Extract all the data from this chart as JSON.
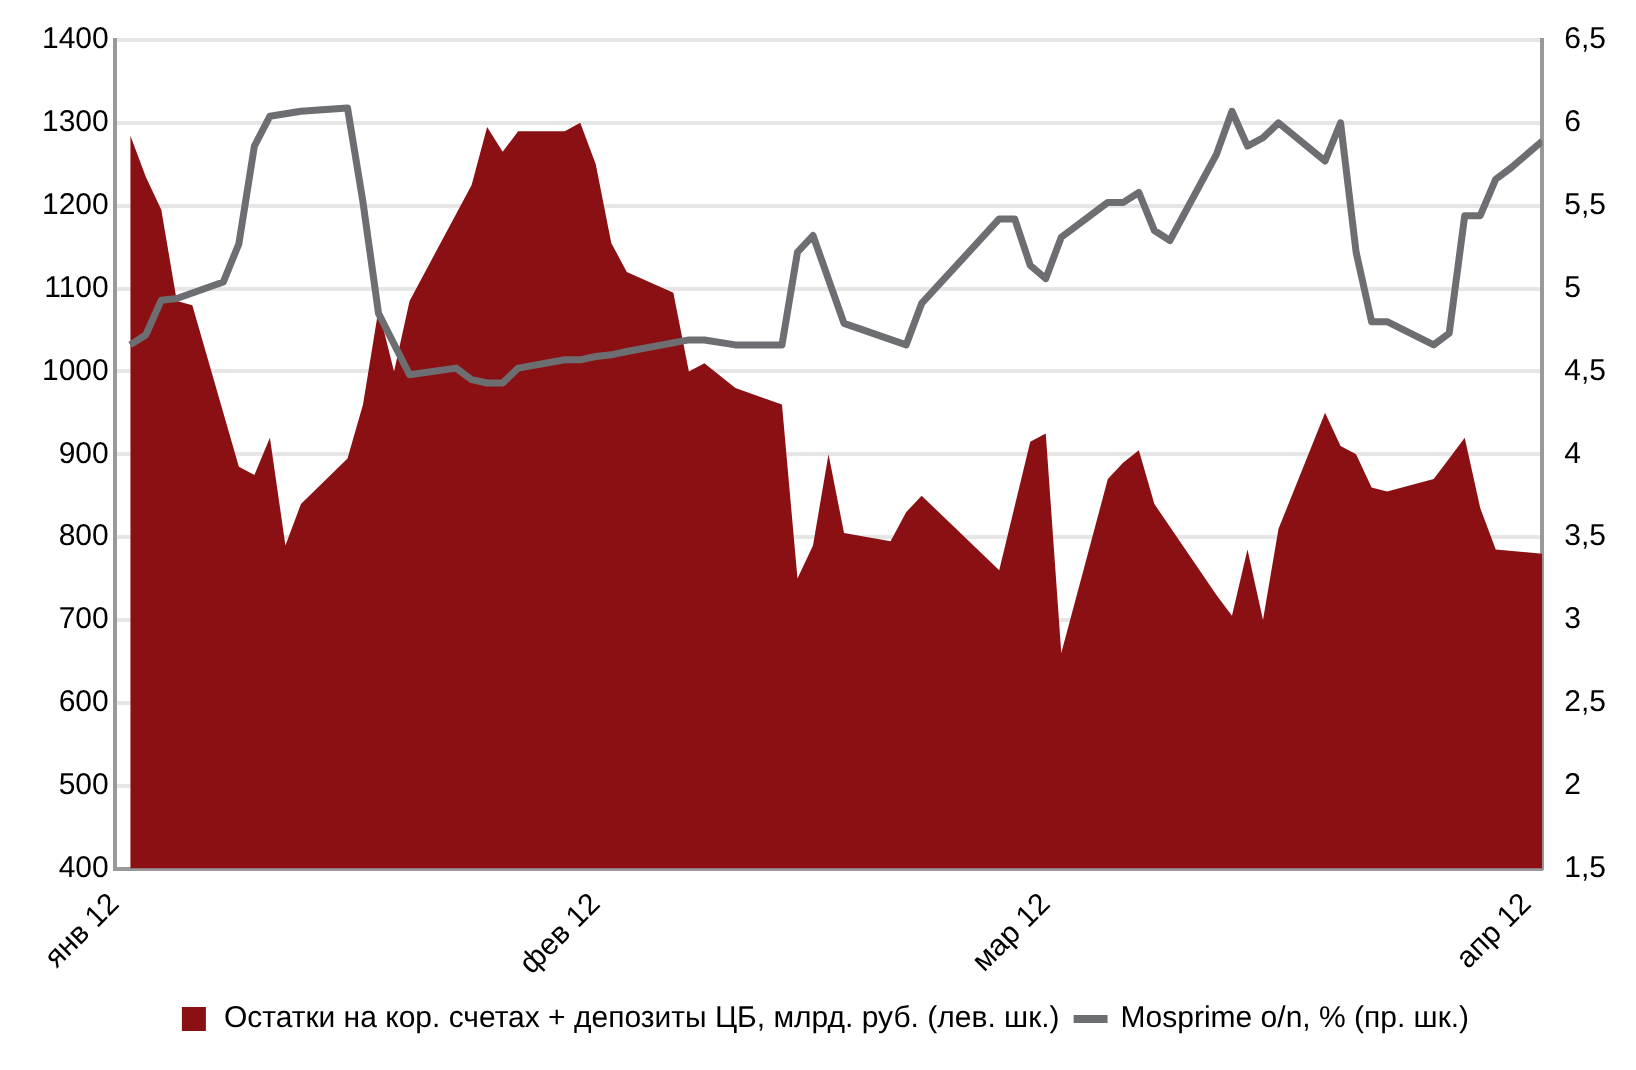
{
  "chart_data": {
    "type": "area",
    "legend": "bottom",
    "grid": "y",
    "marker": "none",
    "line_style": "solid",
    "xlim": [
      "2012-01-01",
      "2012-04-02"
    ],
    "xticks": [
      {
        "value": "2012-01-01",
        "label": "янв 12"
      },
      {
        "value": "2012-02-01",
        "label": "фев 12"
      },
      {
        "value": "2012-03-01",
        "label": "мар 12"
      },
      {
        "value": "2012-04-01",
        "label": "апр 12"
      }
    ],
    "ylim": [
      400,
      1400
    ],
    "yticks": [
      400,
      500,
      600,
      700,
      800,
      900,
      1000,
      1100,
      1200,
      1300,
      1400
    ],
    "y2lim": [
      1.5,
      6.5
    ],
    "y2ticks": [
      {
        "value": 1.5,
        "label": "1,5"
      },
      {
        "value": 2,
        "label": "2"
      },
      {
        "value": 2.5,
        "label": "2,5"
      },
      {
        "value": 3,
        "label": "3"
      },
      {
        "value": 3.5,
        "label": "3,5"
      },
      {
        "value": 4,
        "label": "4"
      },
      {
        "value": 4.5,
        "label": "4,5"
      },
      {
        "value": 5,
        "label": "5"
      },
      {
        "value": 5.5,
        "label": "5,5"
      },
      {
        "value": 6,
        "label": "6"
      },
      {
        "value": 6.5,
        "label": "6,5"
      }
    ],
    "series": [
      {
        "name": "Остатки на кор. счетах + депозиты ЦБ, млрд. руб. (лев. шк.)",
        "color": "#8b1013",
        "x": [
          "2012-01-02",
          "2012-01-03",
          "2012-01-04",
          "2012-01-05",
          "2012-01-06",
          "2012-01-09",
          "2012-01-10",
          "2012-01-11",
          "2012-01-12",
          "2012-01-13",
          "2012-01-16",
          "2012-01-17",
          "2012-01-18",
          "2012-01-19",
          "2012-01-20",
          "2012-01-24",
          "2012-01-25",
          "2012-01-26",
          "2012-01-27",
          "2012-01-30",
          "2012-01-31",
          "2012-02-01",
          "2012-02-02",
          "2012-02-03",
          "2012-02-06",
          "2012-02-07",
          "2012-02-08",
          "2012-02-10",
          "2012-02-13",
          "2012-02-14",
          "2012-02-15",
          "2012-02-16",
          "2012-02-17",
          "2012-02-20",
          "2012-02-21",
          "2012-02-22",
          "2012-02-27",
          "2012-02-29",
          "2012-03-01",
          "2012-03-02",
          "2012-03-05",
          "2012-03-06",
          "2012-03-07",
          "2012-03-08",
          "2012-03-12",
          "2012-03-13",
          "2012-03-14",
          "2012-03-15",
          "2012-03-16",
          "2012-03-19",
          "2012-03-20",
          "2012-03-21",
          "2012-03-22",
          "2012-03-23",
          "2012-03-26",
          "2012-03-27",
          "2012-03-28",
          "2012-03-29",
          "2012-03-30",
          "2012-04-02"
        ],
        "values": [
          1285,
          1235,
          1195,
          1085,
          1080,
          885,
          875,
          920,
          790,
          840,
          895,
          960,
          1075,
          1000,
          1085,
          1225,
          1295,
          1265,
          1290,
          1290,
          1300,
          1250,
          1155,
          1120,
          1095,
          1000,
          1010,
          980,
          960,
          750,
          790,
          900,
          805,
          795,
          830,
          850,
          760,
          915,
          925,
          660,
          870,
          890,
          905,
          840,
          730,
          705,
          785,
          700,
          810,
          950,
          910,
          900,
          860,
          855,
          870,
          895,
          920,
          835,
          785,
          780
        ]
      },
      {
        "name": "Mosprime o/n, % (пр. шк.)",
        "type": "line",
        "axis": "y2",
        "color": "#6d6e71",
        "x": [
          "2012-01-02",
          "2012-01-03",
          "2012-01-04",
          "2012-01-05",
          "2012-01-08",
          "2012-01-09",
          "2012-01-10",
          "2012-01-11",
          "2012-01-13",
          "2012-01-16",
          "2012-01-17",
          "2012-01-18",
          "2012-01-20",
          "2012-01-23",
          "2012-01-24",
          "2012-01-25",
          "2012-01-26",
          "2012-01-27",
          "2012-01-30",
          "2012-01-31",
          "2012-02-01",
          "2012-02-02",
          "2012-02-03",
          "2012-02-07",
          "2012-02-08",
          "2012-02-10",
          "2012-02-13",
          "2012-02-14",
          "2012-02-15",
          "2012-02-17",
          "2012-02-21",
          "2012-02-22",
          "2012-02-27",
          "2012-02-28",
          "2012-02-29",
          "2012-03-01",
          "2012-03-02",
          "2012-03-05",
          "2012-03-06",
          "2012-03-07",
          "2012-03-08",
          "2012-03-09",
          "2012-03-12",
          "2012-03-13",
          "2012-03-14",
          "2012-03-15",
          "2012-03-16",
          "2012-03-19",
          "2012-03-20",
          "2012-03-21",
          "2012-03-22",
          "2012-03-23",
          "2012-03-26",
          "2012-03-27",
          "2012-03-28",
          "2012-03-29",
          "2012-03-30",
          "2012-03-31",
          "2012-04-02"
        ],
        "values": [
          4.66,
          4.72,
          4.93,
          4.94,
          5.04,
          5.27,
          5.86,
          6.04,
          6.07,
          6.09,
          5.52,
          4.85,
          4.48,
          4.52,
          4.45,
          4.43,
          4.43,
          4.52,
          4.57,
          4.57,
          4.59,
          4.6,
          4.62,
          4.69,
          4.69,
          4.66,
          4.66,
          5.22,
          5.32,
          4.79,
          4.66,
          4.91,
          5.42,
          5.42,
          5.14,
          5.06,
          5.31,
          5.52,
          5.52,
          5.58,
          5.35,
          5.29,
          5.81,
          6.07,
          5.86,
          5.91,
          6.0,
          5.77,
          6.0,
          5.22,
          4.8,
          4.8,
          4.66,
          4.73,
          5.44,
          5.44,
          5.66,
          5.73,
          5.89
        ]
      }
    ]
  }
}
